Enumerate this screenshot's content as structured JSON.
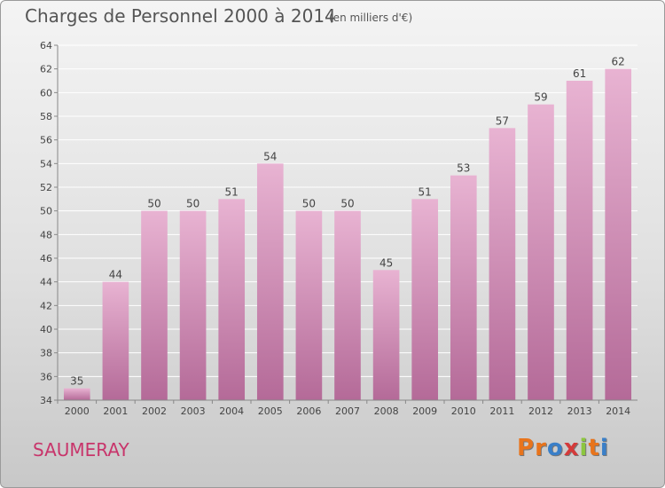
{
  "header": {
    "title": "Charges de Personnel 2000 à 2014",
    "subtitle": "(en milliers d'€)"
  },
  "footer": {
    "place": "SAUMERAY",
    "logo_text": "Proxiti"
  },
  "colors": {
    "bar_top": "#e8b3d2",
    "bar_bottom": "#b46a98",
    "place_text": "#c8356b",
    "logo_letters": [
      "#e8741c",
      "#e8741c",
      "#3a7fc8",
      "#d43a3a",
      "#8cc63f",
      "#e8741c",
      "#3a7fc8"
    ]
  },
  "chart_data": {
    "type": "bar",
    "title": "Charges de Personnel 2000 à 2014",
    "subtitle": "(en milliers d'€)",
    "categories": [
      "2000",
      "2001",
      "2002",
      "2003",
      "2004",
      "2005",
      "2006",
      "2007",
      "2008",
      "2009",
      "2010",
      "2011",
      "2012",
      "2013",
      "2014"
    ],
    "values": [
      35,
      44,
      50,
      50,
      51,
      54,
      50,
      50,
      45,
      51,
      53,
      57,
      59,
      61,
      62
    ],
    "ylim": [
      34,
      64
    ],
    "yticks": [
      34,
      36,
      38,
      40,
      42,
      44,
      46,
      48,
      50,
      52,
      54,
      56,
      58,
      60,
      62,
      64
    ],
    "grid": true,
    "legend": "none"
  }
}
